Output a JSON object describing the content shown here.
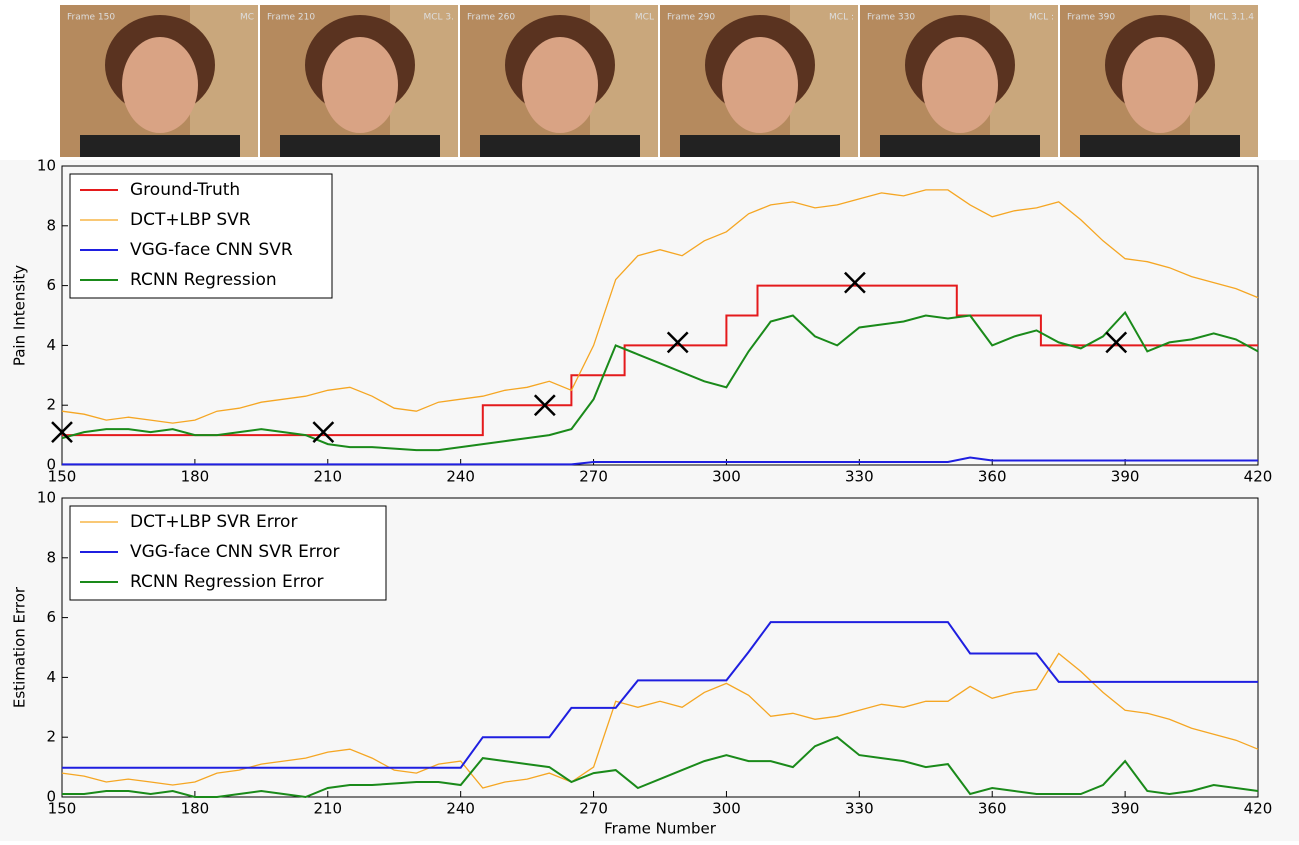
{
  "frames": [
    {
      "label": "Frame 150",
      "tag": "MC"
    },
    {
      "label": "Frame 210",
      "tag": "MCL 3."
    },
    {
      "label": "Frame 260",
      "tag": "MCL"
    },
    {
      "label": "Frame 290",
      "tag": "MCL :"
    },
    {
      "label": "Frame 330",
      "tag": "MCL :"
    },
    {
      "label": "Frame 390",
      "tag": "MCL 3.1.4"
    }
  ],
  "chart_data": [
    {
      "type": "line",
      "ylabel": "Pain Intensity",
      "legend": "upper left",
      "grid": false,
      "xlim": [
        150,
        420
      ],
      "ylim": [
        0,
        10
      ],
      "xticks": [
        150,
        180,
        210,
        240,
        270,
        300,
        330,
        360,
        390,
        420
      ],
      "yticks": [
        0,
        2,
        4,
        6,
        8,
        10
      ],
      "x": [
        150,
        155,
        160,
        165,
        170,
        175,
        180,
        185,
        190,
        195,
        200,
        205,
        210,
        215,
        220,
        225,
        230,
        235,
        240,
        245,
        250,
        255,
        260,
        265,
        270,
        275,
        280,
        285,
        290,
        295,
        300,
        305,
        310,
        315,
        320,
        325,
        330,
        335,
        340,
        345,
        350,
        355,
        360,
        365,
        370,
        375,
        380,
        385,
        390,
        395,
        400,
        405,
        410,
        415,
        420
      ],
      "series": [
        {
          "name": "Ground-Truth",
          "color": "#e41a1c",
          "width": 2,
          "x": [
            150,
            245,
            245,
            265,
            265,
            277,
            277,
            300,
            300,
            307,
            307,
            352,
            352,
            371,
            371,
            420
          ],
          "values": [
            1,
            1,
            2,
            2,
            3,
            3,
            4,
            4,
            5,
            5,
            6,
            6,
            5,
            5,
            4,
            4
          ]
        },
        {
          "name": "DCT+LBP SVR",
          "color": "#f5a623",
          "width": 1.3,
          "values": [
            1.8,
            1.7,
            1.5,
            1.6,
            1.5,
            1.4,
            1.5,
            1.8,
            1.9,
            2.1,
            2.2,
            2.3,
            2.5,
            2.6,
            2.3,
            1.9,
            1.8,
            2.1,
            2.2,
            2.3,
            2.5,
            2.6,
            2.8,
            2.5,
            4,
            6.2,
            7,
            7.2,
            7,
            7.5,
            7.8,
            8.4,
            8.7,
            8.8,
            8.6,
            8.7,
            8.9,
            9.1,
            9,
            9.2,
            9.2,
            8.7,
            8.3,
            8.5,
            8.6,
            8.8,
            8.2,
            7.5,
            6.9,
            6.8,
            6.6,
            6.3,
            6.1,
            5.9,
            5.6
          ]
        },
        {
          "name": "VGG-face CNN SVR",
          "color": "#1f1fe0",
          "width": 2,
          "values": [
            0.02,
            0.02,
            0.02,
            0.02,
            0.02,
            0.02,
            0.02,
            0.02,
            0.02,
            0.02,
            0.02,
            0.02,
            0.02,
            0.02,
            0.02,
            0.02,
            0.02,
            0.02,
            0.02,
            0.02,
            0.02,
            0.02,
            0.02,
            0.02,
            0.1,
            0.1,
            0.1,
            0.1,
            0.1,
            0.1,
            0.1,
            0.1,
            0.1,
            0.1,
            0.1,
            0.1,
            0.1,
            0.1,
            0.1,
            0.1,
            0.1,
            0.25,
            0.15,
            0.15,
            0.15,
            0.15,
            0.15,
            0.15,
            0.15,
            0.15,
            0.15,
            0.15,
            0.15,
            0.15,
            0.15
          ]
        },
        {
          "name": "RCNN Regression",
          "color": "#1a8a1a",
          "width": 2,
          "values": [
            0.9,
            1.1,
            1.2,
            1.2,
            1.1,
            1.2,
            1,
            1,
            1.1,
            1.2,
            1.1,
            1,
            0.7,
            0.6,
            0.6,
            0.55,
            0.5,
            0.5,
            0.6,
            0.7,
            0.8,
            0.9,
            1,
            1.2,
            2.2,
            4,
            3.7,
            3.4,
            3.1,
            2.8,
            2.6,
            3.8,
            4.8,
            5,
            4.3,
            4,
            4.6,
            4.7,
            4.8,
            5,
            4.9,
            5,
            4,
            4.3,
            4.5,
            4.1,
            3.9,
            4.3,
            5.1,
            3.8,
            4.1,
            4.2,
            4.4,
            4.2,
            3.8
          ]
        }
      ],
      "markers": {
        "color": "#000000",
        "x": [
          150,
          209,
          259,
          289,
          329,
          388
        ],
        "values": [
          1.1,
          1.1,
          2,
          4.1,
          6.1,
          4.1
        ]
      }
    },
    {
      "type": "line",
      "ylabel": "Estimation Error",
      "xlabel": "Frame Number",
      "legend": "upper left",
      "grid": false,
      "xlim": [
        150,
        420
      ],
      "ylim": [
        0,
        10
      ],
      "xticks": [
        150,
        180,
        210,
        240,
        270,
        300,
        330,
        360,
        390,
        420
      ],
      "yticks": [
        0,
        2,
        4,
        6,
        8,
        10
      ],
      "x": [
        150,
        155,
        160,
        165,
        170,
        175,
        180,
        185,
        190,
        195,
        200,
        205,
        210,
        215,
        220,
        225,
        230,
        235,
        240,
        245,
        250,
        255,
        260,
        265,
        270,
        275,
        280,
        285,
        290,
        295,
        300,
        305,
        310,
        315,
        320,
        325,
        330,
        335,
        340,
        345,
        350,
        355,
        360,
        365,
        370,
        375,
        380,
        385,
        390,
        395,
        400,
        405,
        410,
        415,
        420
      ],
      "series": [
        {
          "name": "DCT+LBP SVR Error",
          "color": "#f5a623",
          "width": 1.3,
          "values": [
            0.8,
            0.7,
            0.5,
            0.6,
            0.5,
            0.4,
            0.5,
            0.8,
            0.9,
            1.1,
            1.2,
            1.3,
            1.5,
            1.6,
            1.3,
            0.9,
            0.8,
            1.1,
            1.2,
            0.3,
            0.5,
            0.6,
            0.8,
            0.5,
            1,
            3.2,
            3,
            3.2,
            3,
            3.5,
            3.8,
            3.4,
            2.7,
            2.8,
            2.6,
            2.7,
            2.9,
            3.1,
            3,
            3.2,
            3.2,
            3.7,
            3.3,
            3.5,
            3.6,
            4.8,
            4.2,
            3.5,
            2.9,
            2.8,
            2.6,
            2.3,
            2.1,
            1.9,
            1.6
          ]
        },
        {
          "name": "VGG-face CNN SVR Error",
          "color": "#1f1fe0",
          "width": 2,
          "values": [
            0.98,
            0.98,
            0.98,
            0.98,
            0.98,
            0.98,
            0.98,
            0.98,
            0.98,
            0.98,
            0.98,
            0.98,
            0.98,
            0.98,
            0.98,
            0.98,
            0.98,
            0.98,
            0.98,
            2,
            2,
            2,
            2,
            2.98,
            2.98,
            2.98,
            3.9,
            3.9,
            3.9,
            3.9,
            3.9,
            4.85,
            5.85,
            5.85,
            5.85,
            5.85,
            5.85,
            5.85,
            5.85,
            5.85,
            5.85,
            4.8,
            4.8,
            4.8,
            4.8,
            3.85,
            3.85,
            3.85,
            3.85,
            3.85,
            3.85,
            3.85,
            3.85,
            3.85,
            3.85
          ]
        },
        {
          "name": "RCNN Regression Error",
          "color": "#1a8a1a",
          "width": 2,
          "values": [
            0.1,
            0.1,
            0.2,
            0.2,
            0.1,
            0.2,
            0,
            0,
            0.1,
            0.2,
            0.1,
            0,
            0.3,
            0.4,
            0.4,
            0.45,
            0.5,
            0.5,
            0.4,
            1.3,
            1.2,
            1.1,
            1,
            0.5,
            0.8,
            0.9,
            0.3,
            0.6,
            0.9,
            1.2,
            1.4,
            1.2,
            1.2,
            1,
            1.7,
            2,
            1.4,
            1.3,
            1.2,
            1,
            1.1,
            0.1,
            0.3,
            0.2,
            0.1,
            0.1,
            0.1,
            0.4,
            1.2,
            0.2,
            0.1,
            0.2,
            0.4,
            0.3,
            0.2
          ]
        }
      ]
    }
  ]
}
